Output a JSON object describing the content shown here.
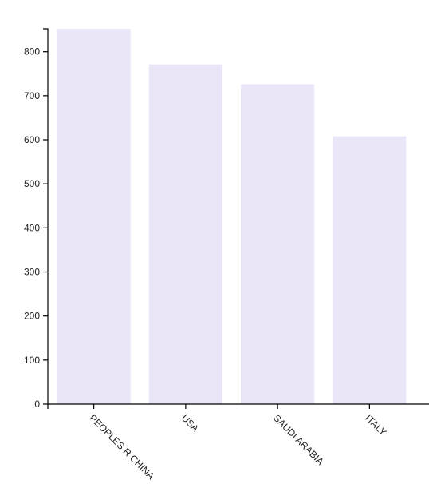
{
  "chart_data": {
    "type": "bar",
    "categories": [
      "PEOPLES R CHINA",
      "USA",
      "SAUDI ARABIA",
      "ITALY"
    ],
    "values": [
      852,
      771,
      726,
      608
    ],
    "color": "#ebe6f7",
    "ylim": [
      0,
      852
    ],
    "yticks": [
      0,
      100,
      200,
      300,
      400,
      500,
      600,
      700,
      800
    ],
    "grid": false
  }
}
